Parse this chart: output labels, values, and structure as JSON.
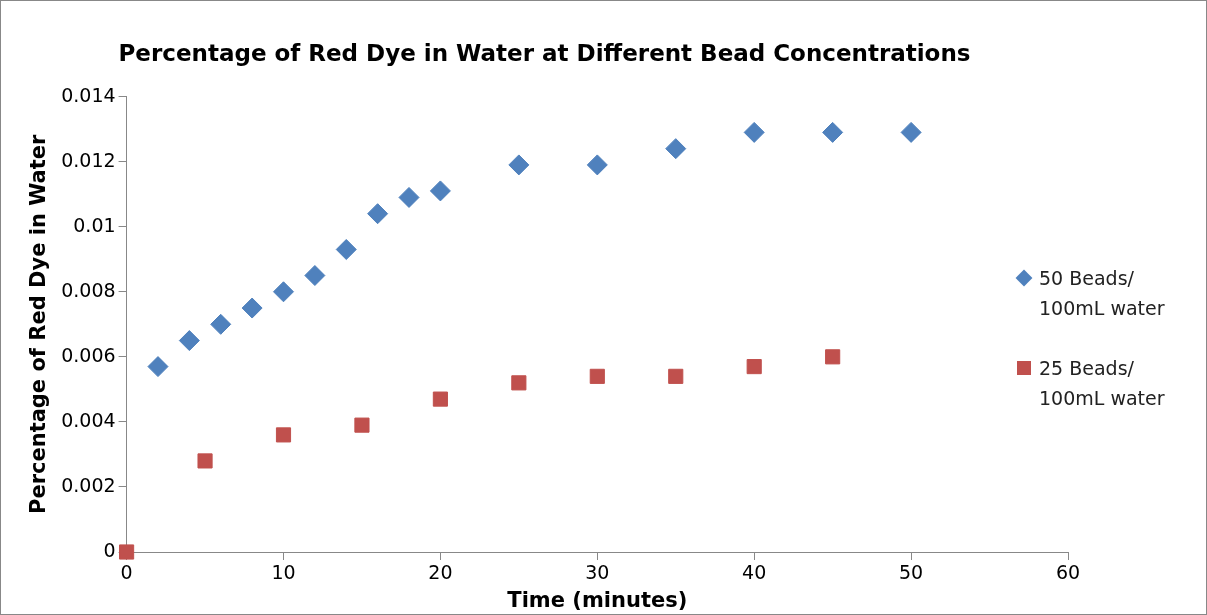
{
  "chart_data": {
    "type": "scatter",
    "title": "Percentage of Red Dye in Water at Different Bead Concentrations",
    "xlabel": "Time (minutes)",
    "ylabel": "Percentage of Red Dye in Water",
    "xlim": [
      0,
      60
    ],
    "xticks": [
      0,
      10,
      20,
      30,
      40,
      50,
      60
    ],
    "ylim": [
      0,
      0.014
    ],
    "yticks": [
      0,
      0.002,
      0.004,
      0.006,
      0.008,
      0.01,
      0.012,
      0.014
    ],
    "grid": false,
    "legend": "right",
    "series": [
      {
        "name": "50 Beads/ 100mL water",
        "color": "#4f81bd",
        "marker": "diamond",
        "x": [
          2,
          4,
          6,
          8,
          10,
          12,
          14,
          16,
          18,
          20,
          25,
          30,
          35,
          40,
          45,
          50
        ],
        "values": [
          0.0057,
          0.0065,
          0.007,
          0.0075,
          0.008,
          0.0085,
          0.0093,
          0.0104,
          0.0109,
          0.0111,
          0.0119,
          0.0119,
          0.0124,
          0.0129,
          0.0129,
          0.0129
        ]
      },
      {
        "name": "25 Beads/ 100mL water",
        "color": "#c0504d",
        "marker": "square",
        "x": [
          0,
          5,
          10,
          15,
          20,
          25,
          30,
          35,
          40,
          45
        ],
        "values": [
          0,
          0.0028,
          0.0036,
          0.0039,
          0.0047,
          0.0052,
          0.0054,
          0.0054,
          0.0057,
          0.006
        ]
      }
    ]
  }
}
